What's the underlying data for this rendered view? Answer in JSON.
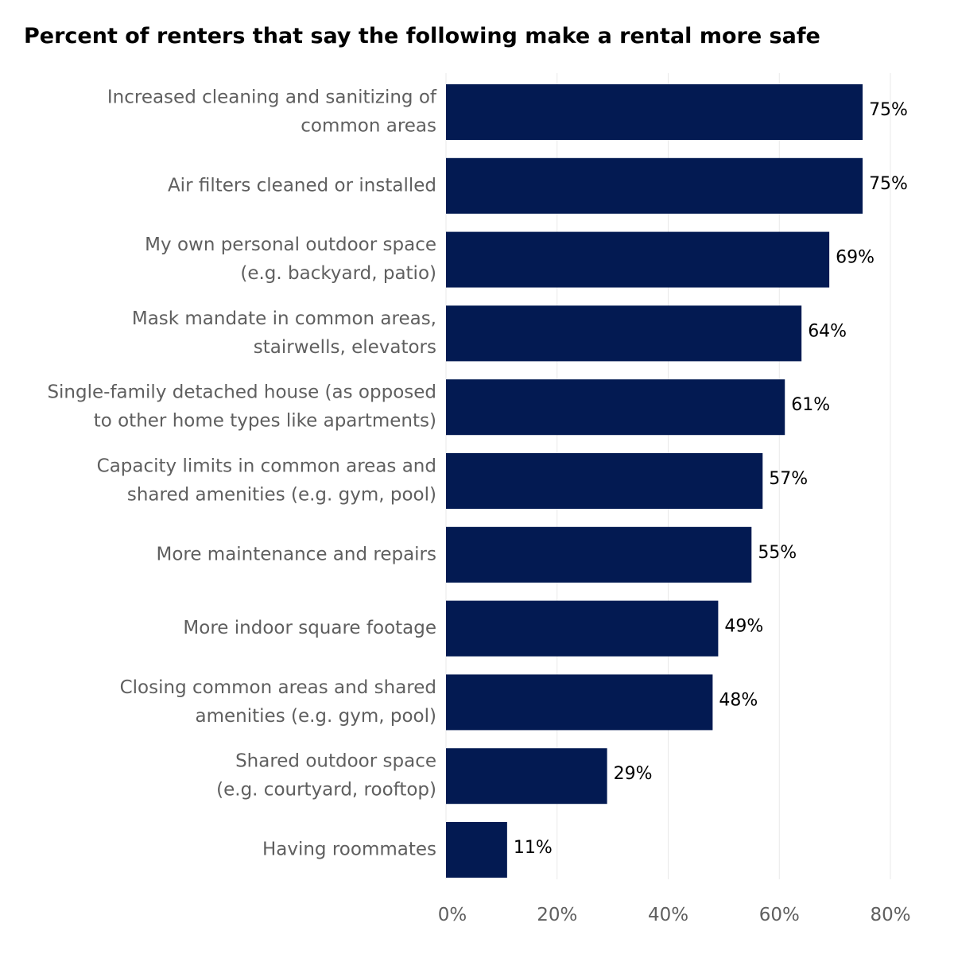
{
  "chart_data": {
    "type": "bar",
    "orientation": "horizontal",
    "title": "Percent of renters that say the following make a rental more safe",
    "categories": [
      [
        "Increased cleaning and sanitizing of",
        "common areas"
      ],
      [
        "Air filters cleaned or installed"
      ],
      [
        "My own personal outdoor space",
        "(e.g. backyard, patio)"
      ],
      [
        "Mask mandate in common areas,",
        "stairwells, elevators"
      ],
      [
        "Single-family detached house (as opposed",
        "to other home types like apartments)"
      ],
      [
        "Capacity limits in common areas and",
        "shared amenities (e.g. gym, pool)"
      ],
      [
        "More maintenance and repairs"
      ],
      [
        "More indoor square footage"
      ],
      [
        "Closing common areas and shared",
        "amenities (e.g. gym, pool)"
      ],
      [
        "Shared outdoor space",
        "(e.g. courtyard, rooftop)"
      ],
      [
        "Having roommates"
      ]
    ],
    "values": [
      75,
      75,
      69,
      64,
      61,
      57,
      55,
      49,
      48,
      29,
      11
    ],
    "value_labels": [
      "75%",
      "75%",
      "69%",
      "64%",
      "61%",
      "57%",
      "55%",
      "49%",
      "48%",
      "29%",
      "11%"
    ],
    "xlim": [
      0,
      80
    ],
    "xticks": [
      0,
      20,
      40,
      60,
      80
    ],
    "xtick_labels": [
      "0%",
      "20%",
      "40%",
      "60%",
      "80%"
    ],
    "xlabel": "",
    "ylabel": "",
    "grid": "vertical",
    "bar_color": "#031a52",
    "text_color": "#5f5f5f"
  }
}
